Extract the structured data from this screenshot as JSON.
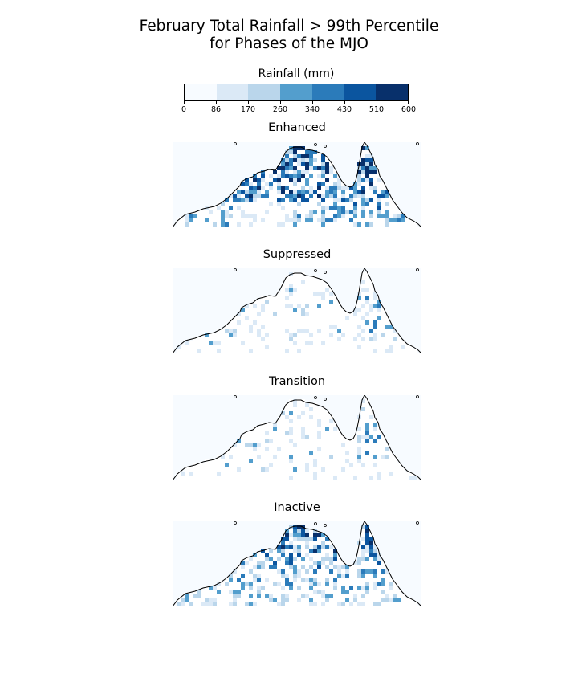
{
  "figure": {
    "title_line1": "February Total Rainfall > 99th Percentile",
    "title_line2": "for Phases of the MJO"
  },
  "colorbar": {
    "title": "Rainfall (mm)",
    "ticks": [
      "0",
      "86",
      "170",
      "260",
      "340",
      "430",
      "510",
      "600"
    ],
    "colors": [
      "#f7fbff",
      "#dbe9f6",
      "#bad6eb",
      "#539ecd",
      "#2b7bba",
      "#0b559f",
      "#08306b"
    ]
  },
  "panels": [
    {
      "title": "Enhanced",
      "intensity": "high"
    },
    {
      "title": "Suppressed",
      "intensity": "low"
    },
    {
      "title": "Transition",
      "intensity": "low"
    },
    {
      "title": "Inactive",
      "intensity": "medium"
    }
  ]
}
